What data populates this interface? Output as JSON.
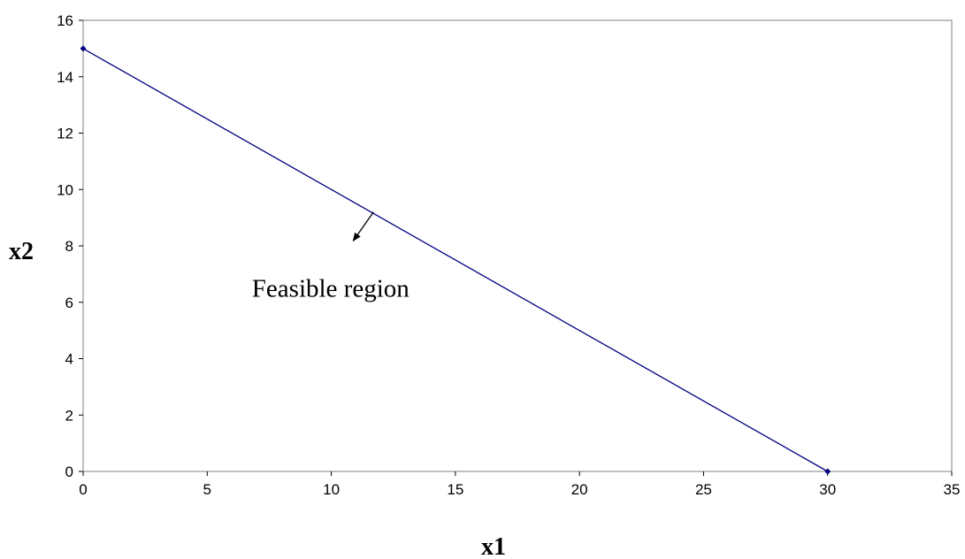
{
  "chart_data": {
    "type": "scatter",
    "title": "",
    "xlabel": "x1",
    "ylabel": "x2",
    "xlim": [
      0,
      35
    ],
    "ylim": [
      0,
      16
    ],
    "x_ticks": [
      0,
      5,
      10,
      15,
      20,
      25,
      30,
      35
    ],
    "y_ticks": [
      0,
      2,
      4,
      6,
      8,
      10,
      12,
      14,
      16
    ],
    "grid": false,
    "legend": "none",
    "series": [
      {
        "points": [
          {
            "x": 0,
            "y": 15
          },
          {
            "x": 30,
            "y": 0
          }
        ],
        "line": true,
        "markers": "diamond",
        "color": "#000080"
      }
    ],
    "annotations": [
      {
        "text": "Feasible region",
        "anchor": {
          "x": 6.8,
          "y": 6.2
        }
      }
    ],
    "arrows": [
      {
        "from": {
          "x": 11.7,
          "y": 9.2
        },
        "to": {
          "x": 10.9,
          "y": 8.2
        }
      }
    ]
  }
}
